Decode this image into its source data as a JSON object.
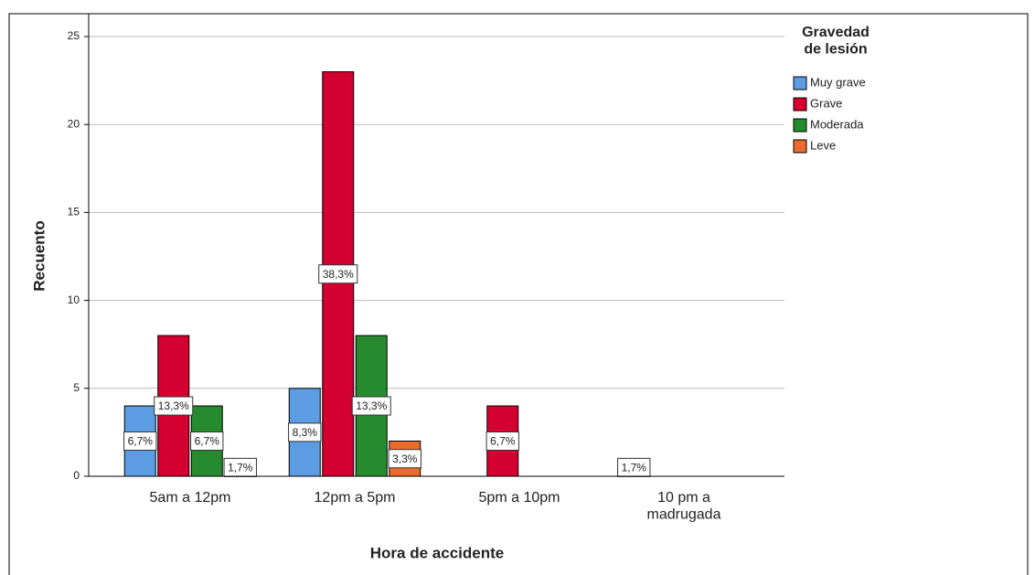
{
  "chart_data": {
    "type": "bar",
    "x_label": "Hora de accidente",
    "y_label": "Recuento",
    "legend_title": "Gravedad\nde lesión",
    "legend_position": "right",
    "categories": [
      "5am a 12pm",
      "12pm a 5pm",
      "5pm a 10pm",
      "10 pm a\nmadrugada"
    ],
    "series": [
      {
        "name": "Muy grave",
        "color": "#5b9ce3",
        "values": [
          4,
          5,
          null,
          1
        ],
        "value_labels": [
          "6,7%",
          "8,3%",
          null,
          "1,7%"
        ]
      },
      {
        "name": "Grave",
        "color": "#d4002f",
        "values": [
          8,
          23,
          4,
          null
        ],
        "value_labels": [
          "13,3%",
          "38,3%",
          "6,7%",
          null
        ]
      },
      {
        "name": "Moderada",
        "color": "#268a2e",
        "values": [
          4,
          8,
          null,
          null
        ],
        "value_labels": [
          "6,7%",
          "13,3%",
          null,
          null
        ]
      },
      {
        "name": "Leve",
        "color": "#ea6b2c",
        "values": [
          1,
          2,
          null,
          null
        ],
        "value_labels": [
          "1,7%",
          "3,3%",
          null,
          null
        ]
      }
    ],
    "ylim": [
      0,
      25
    ],
    "yticks": [
      0,
      5,
      10,
      15,
      20,
      25
    ],
    "grid": true
  }
}
